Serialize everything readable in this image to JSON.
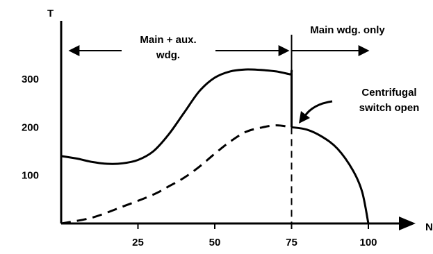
{
  "chart_data": {
    "type": "line",
    "xlabel": "N",
    "ylabel": "T",
    "x_ticks": [
      25,
      50,
      75,
      100
    ],
    "y_ticks": [
      100,
      200,
      300
    ],
    "xlim": [
      0,
      110
    ],
    "ylim": [
      0,
      340
    ],
    "grid": false,
    "series": [
      {
        "style": "solid",
        "points": [
          [
            0,
            140
          ],
          [
            5,
            135
          ],
          [
            10,
            128
          ],
          [
            15,
            124
          ],
          [
            20,
            125
          ],
          [
            25,
            132
          ],
          [
            30,
            150
          ],
          [
            35,
            185
          ],
          [
            40,
            230
          ],
          [
            45,
            275
          ],
          [
            50,
            303
          ],
          [
            55,
            316
          ],
          [
            60,
            320
          ],
          [
            65,
            319
          ],
          [
            70,
            316
          ],
          [
            74.5,
            310
          ],
          [
            75,
            310
          ],
          [
            75,
            200
          ]
        ]
      },
      {
        "style": "dashed",
        "points": [
          [
            0,
            0
          ],
          [
            10,
            12
          ],
          [
            20,
            35
          ],
          [
            30,
            60
          ],
          [
            35,
            77
          ],
          [
            40,
            95
          ],
          [
            45,
            118
          ],
          [
            50,
            145
          ],
          [
            55,
            170
          ],
          [
            60,
            190
          ],
          [
            65,
            199
          ],
          [
            70,
            204
          ],
          [
            75,
            200
          ]
        ]
      },
      {
        "style": "solid",
        "points": [
          [
            75,
            200
          ],
          [
            80,
            195
          ],
          [
            85,
            180
          ],
          [
            90,
            155
          ],
          [
            95,
            110
          ],
          [
            98,
            65
          ],
          [
            100,
            0
          ]
        ]
      }
    ],
    "switch_x": 75,
    "annotations": {
      "region_left": [
        "Main + aux.",
        "wdg."
      ],
      "region_right": "Main wdg. only",
      "switch_note": [
        "Centrifugal",
        "switch open"
      ]
    }
  }
}
